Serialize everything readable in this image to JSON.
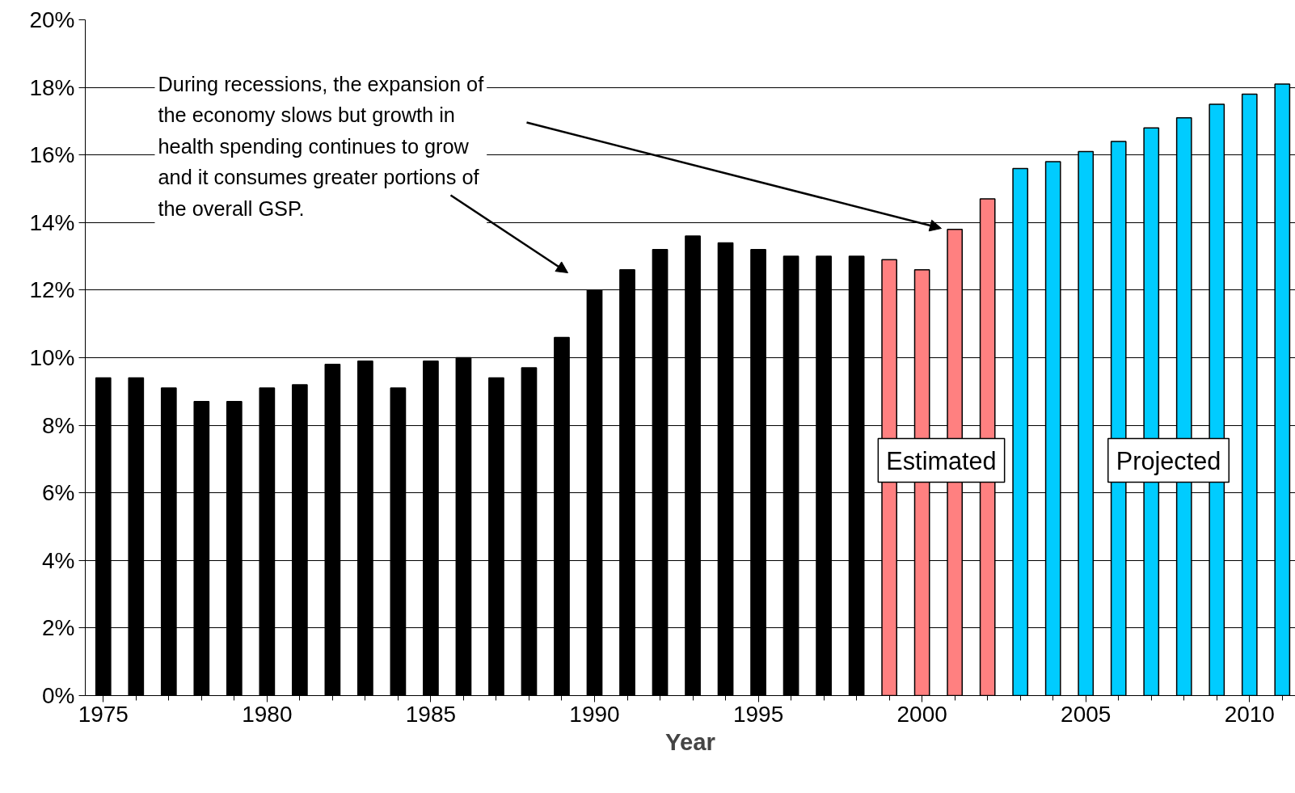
{
  "chart_data": {
    "type": "bar",
    "xlabel": "Year",
    "categories": [
      "1975",
      null,
      null,
      null,
      null,
      "1980",
      null,
      null,
      null,
      null,
      "1985",
      null,
      null,
      null,
      null,
      "1990",
      null,
      null,
      null,
      null,
      "1995",
      null,
      null,
      null,
      null,
      "2000",
      null,
      null,
      null,
      null,
      "2005",
      null,
      null,
      null,
      null,
      "2010",
      null
    ],
    "values": [
      9.4,
      9.4,
      9.1,
      8.7,
      8.7,
      9.1,
      9.2,
      9.8,
      9.9,
      9.1,
      9.9,
      10.0,
      9.4,
      9.7,
      10.6,
      12.0,
      12.6,
      13.2,
      13.6,
      13.4,
      13.2,
      13.0,
      13.0,
      13.0,
      12.9,
      12.6,
      13.8,
      14.7,
      15.6,
      15.8,
      16.1,
      16.4,
      16.8,
      17.1,
      17.5,
      17.8,
      18.1
    ],
    "colors": [
      "#000000",
      "#000000",
      "#000000",
      "#000000",
      "#000000",
      "#000000",
      "#000000",
      "#000000",
      "#000000",
      "#000000",
      "#000000",
      "#000000",
      "#000000",
      "#000000",
      "#000000",
      "#000000",
      "#000000",
      "#000000",
      "#000000",
      "#000000",
      "#000000",
      "#000000",
      "#000000",
      "#000000",
      "#ff8080",
      "#ff8080",
      "#ff8080",
      "#ff8080",
      "#00ccff",
      "#00ccff",
      "#00ccff",
      "#00ccff",
      "#00ccff",
      "#00ccff",
      "#00ccff",
      "#00ccff",
      "#00ccff"
    ],
    "ylim": [
      0,
      20
    ],
    "yticks": [
      {
        "value": 0,
        "label": "0%"
      },
      {
        "value": 2,
        "label": "2%"
      },
      {
        "value": 4,
        "label": "4%"
      },
      {
        "value": 6,
        "label": "6%"
      },
      {
        "value": 8,
        "label": "8%"
      },
      {
        "value": 10,
        "label": "10%"
      },
      {
        "value": 12,
        "label": "12%"
      },
      {
        "value": 14,
        "label": "14%"
      },
      {
        "value": 16,
        "label": "16%"
      },
      {
        "value": 18,
        "label": "18%"
      },
      {
        "value": 20,
        "label": "20%"
      }
    ],
    "grid": "y",
    "annotations": [
      "During recessions, the expansion of\nthe economy slows but growth in\nhealth spending continues to grow\nand it consumes greater portions of\nthe overall GSP.",
      "Estimated",
      "Projected"
    ]
  }
}
